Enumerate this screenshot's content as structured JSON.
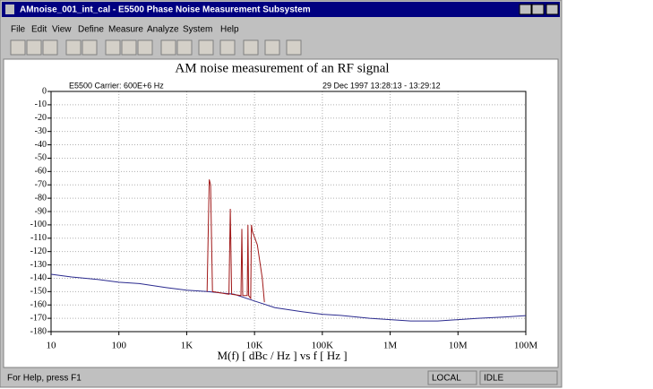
{
  "window": {
    "title": "AMnoise_001_int_cal -      E5500 Phase Noise Measurement Subsystem",
    "menu": [
      "File",
      "Edit",
      "View",
      "Define",
      "Measure",
      "Analyze",
      "System",
      "Help"
    ],
    "status": {
      "help": "For Help, press F1",
      "mode": "LOCAL",
      "state": "IDLE"
    }
  },
  "chart_data": {
    "type": "line",
    "title": "AM noise measurement of an RF signal",
    "subtitle_left": "E5500    Carrier: 600E+6 Hz",
    "subtitle_right": "29 Dec 1997  13:28:13 - 13:29:12",
    "x_label": "M(f) [ dBc / Hz ]  vs  f  [ Hz ]",
    "log_x": true,
    "grid": true,
    "xlim": [
      10,
      100000000
    ],
    "xticks": [
      10,
      100,
      {
        "value": 1000,
        "label": "1K"
      },
      {
        "value": 10000,
        "label": "10K"
      },
      {
        "value": 100000,
        "label": "100K"
      },
      {
        "value": 1000000,
        "label": "1M"
      },
      {
        "value": 10000000,
        "label": "10M"
      },
      {
        "value": 100000000,
        "label": "100M"
      }
    ],
    "ylim": [
      -180,
      0
    ],
    "yticks": [
      0,
      -10,
      -20,
      -30,
      -40,
      -50,
      -60,
      -70,
      -80,
      -90,
      -100,
      -110,
      -120,
      -130,
      -140,
      -150,
      -160,
      -170,
      -180
    ],
    "series": [
      {
        "color": "#2b2b8f",
        "x": [
          10,
          20,
          50,
          100,
          200,
          500,
          1000,
          2000,
          5000,
          10000,
          20000,
          50000,
          100000,
          200000,
          500000,
          1000000,
          2000000,
          5000000,
          10000000,
          20000000,
          50000000,
          100000000
        ],
        "values": [
          -137,
          -139,
          -141,
          -143,
          -144,
          -147,
          -149,
          -150,
          -152,
          -157,
          -162,
          -165,
          -167,
          -168,
          -170,
          -171,
          -172,
          -172,
          -171,
          -170,
          -169,
          -168
        ]
      },
      {
        "color": "#a01818",
        "x": [
          2000,
          2150,
          2250,
          2400,
          4200,
          4400,
          4600,
          6300,
          6500,
          6700,
          7800,
          8000,
          8200,
          8800,
          9000,
          9300,
          11000,
          13000,
          14000
        ],
        "values": [
          -150,
          -66,
          -70,
          -150,
          -152,
          -88,
          -152,
          -153,
          -103,
          -153,
          -153,
          -100,
          -153,
          -155,
          -100,
          -105,
          -115,
          -140,
          -158
        ]
      }
    ]
  }
}
